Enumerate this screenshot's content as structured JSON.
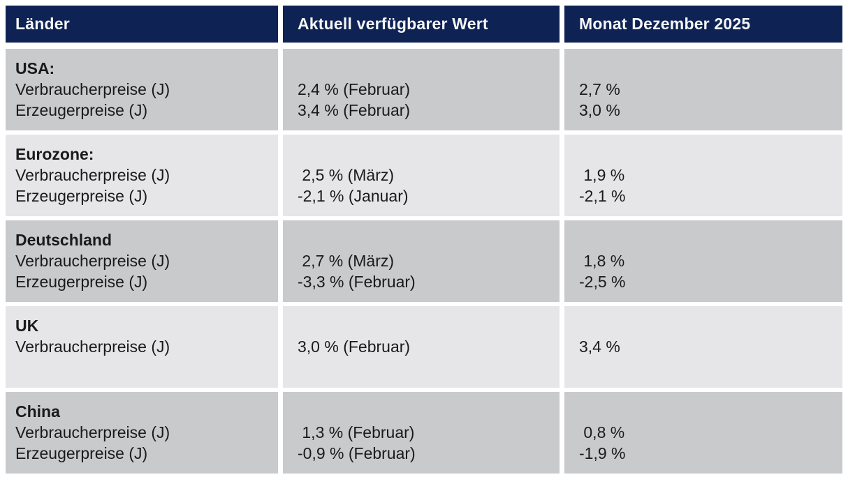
{
  "colors": {
    "header_bg": "#0e2254",
    "header_text": "#f5f6f8",
    "row_dark": "#c9cacc",
    "row_light": "#e6e6e8",
    "body_text": "#1a1a1a",
    "page_bg": "#ffffff"
  },
  "table": {
    "columns": [
      {
        "label": "Länder"
      },
      {
        "label": "Aktuell verfügbarer Wert"
      },
      {
        "label": "Monat Dezember 2025"
      }
    ],
    "rows": [
      {
        "country": "USA:",
        "indicators": "Verbraucherpreise (J)\nErzeugerpreise (J)",
        "current": "2,4 % (Februar)\n3,4 % (Februar)",
        "monat": "2,7 %\n3,0 %",
        "shade": "dark"
      },
      {
        "country": "Eurozone:",
        "indicators": "Verbraucherpreise (J)\nErzeugerpreise (J)",
        "current": " 2,5 % (März)\n-2,1 % (Januar)",
        "monat": " 1,9 %\n-2,1 %",
        "shade": "light"
      },
      {
        "country": "Deutschland",
        "indicators": "Verbraucherpreise (J)\nErzeugerpreise (J)",
        "current": " 2,7 % (März)\n-3,3 % (Februar)",
        "monat": " 1,8 %\n-2,5 %",
        "shade": "dark"
      },
      {
        "country": "UK",
        "indicators": "Verbraucherpreise (J)",
        "current": "3,0 % (Februar)",
        "monat": "3,4 %",
        "shade": "light"
      },
      {
        "country": "China",
        "indicators": "Verbraucherpreise (J)\nErzeugerpreise (J)",
        "current": " 1,3 % (Februar)\n-0,9 % (Februar)",
        "monat": " 0,8 %\n-1,9 %",
        "shade": "dark"
      }
    ]
  }
}
